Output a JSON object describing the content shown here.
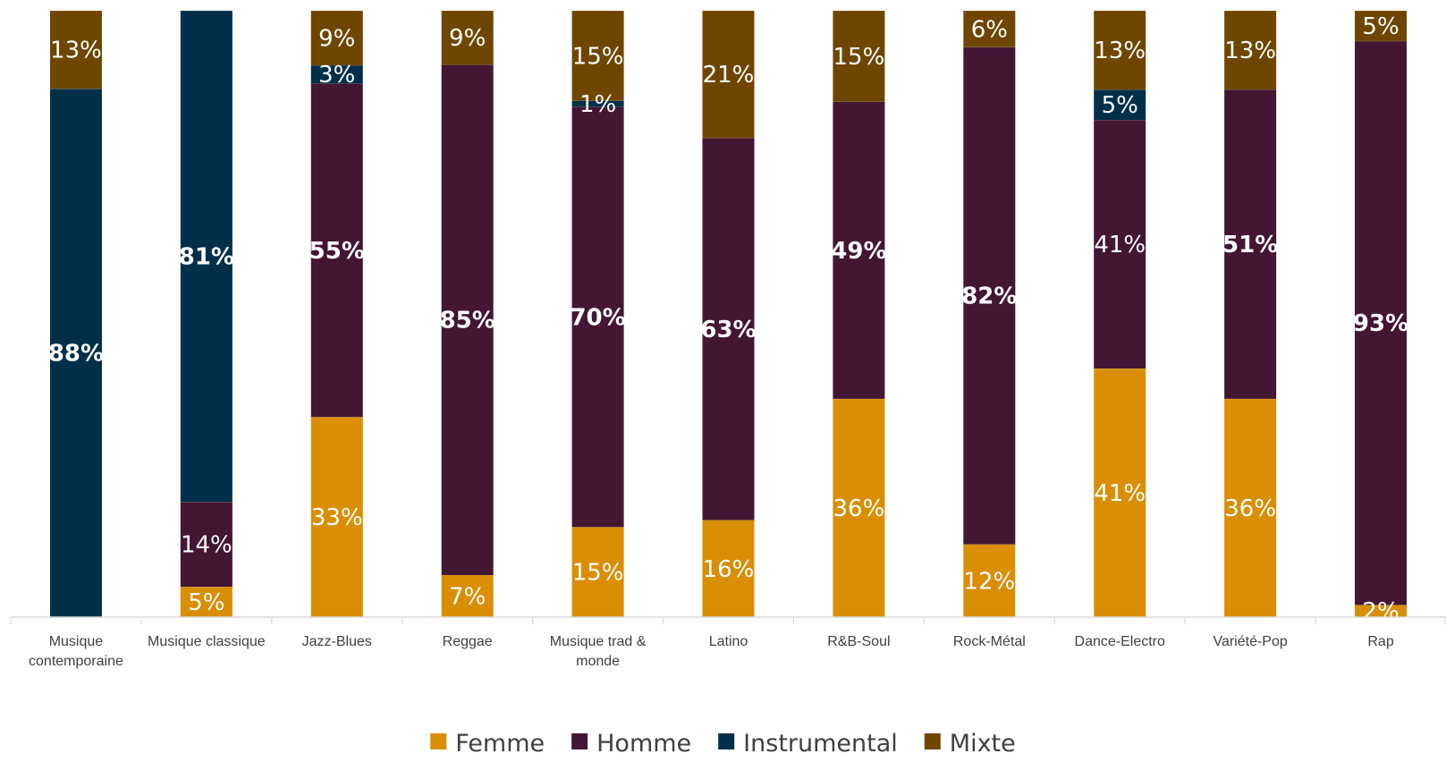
{
  "chart_data": {
    "type": "bar",
    "stacked": true,
    "percent": true,
    "categories": [
      [
        "Musique",
        "contemporaine"
      ],
      [
        "Musique classique"
      ],
      [
        "Jazz-Blues"
      ],
      [
        "Reggae"
      ],
      [
        "Musique trad &",
        "monde"
      ],
      [
        "Latino"
      ],
      [
        "R&B-Soul"
      ],
      [
        "Rock-Métal"
      ],
      [
        "Dance-Electro"
      ],
      [
        "Variété-Pop"
      ],
      [
        "Rap"
      ]
    ],
    "series": [
      {
        "name": "Femme",
        "color": "#D98E04",
        "values": [
          0,
          5,
          33,
          7,
          15,
          16,
          36,
          12,
          41,
          36,
          2
        ],
        "labels": [
          "",
          "5%",
          "33%",
          "7%",
          "15%",
          "16%",
          "36%",
          "12%",
          "41%",
          "36%",
          "2%"
        ]
      },
      {
        "name": "Homme",
        "color": "#431633",
        "values": [
          0,
          14,
          55,
          85,
          70,
          63,
          49,
          82,
          41,
          51,
          93
        ],
        "labels": [
          "",
          "14%",
          "55%",
          "85%",
          "70%",
          "63%",
          "49%",
          "82%",
          "41%",
          "51%",
          "93%"
        ]
      },
      {
        "name": "Instrumental",
        "color": "#003049",
        "values": [
          88,
          81,
          3,
          0,
          1,
          0,
          0,
          0,
          5,
          0,
          0
        ],
        "labels": [
          "88%",
          "81%",
          "3%",
          "",
          "1%",
          "",
          "",
          "",
          "5%",
          "",
          ""
        ]
      },
      {
        "name": "Mixte",
        "color": "#6E4600",
        "values": [
          13,
          0,
          9,
          9,
          15,
          21,
          15,
          6,
          13,
          13,
          5
        ],
        "labels": [
          "13%",
          "",
          "9%",
          "9%",
          "15%",
          "21%",
          "15%",
          "6%",
          "13%",
          "13%",
          "5%"
        ]
      }
    ],
    "bold_labels": [
      "88%",
      "81%",
      "55%",
      "85%",
      "70%",
      "63%",
      "49%",
      "82%",
      "51%",
      "93%"
    ],
    "ylim": [
      0,
      100
    ],
    "grid": false,
    "legend_position": "bottom"
  }
}
